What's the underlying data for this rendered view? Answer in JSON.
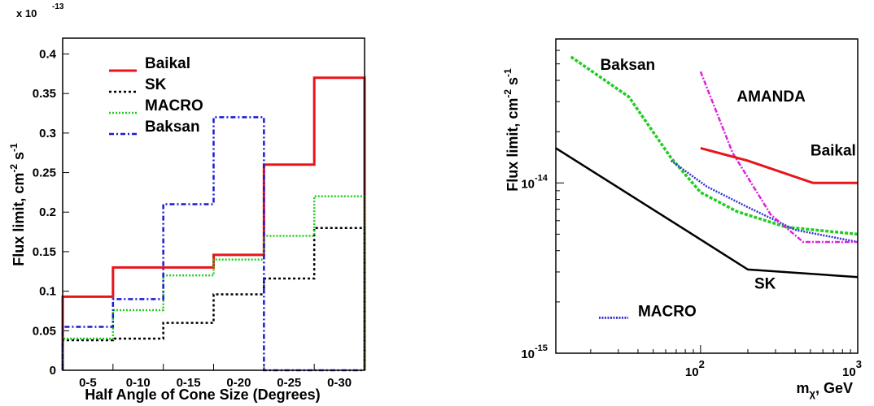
{
  "chart_data": [
    {
      "type": "step",
      "multiplier_label": {
        "base": "x 10",
        "exp": "-13"
      },
      "xlabel": "Half Angle of Cone Size (Degrees)",
      "ylabel": {
        "main": "Flux limit, cm",
        "exp1": "-2",
        "mid": " s",
        "exp2": "-1"
      },
      "categories": [
        "0-5",
        "0-10",
        "0-15",
        "0-20",
        "0-25",
        "0-30"
      ],
      "ylim": [
        0,
        0.42
      ],
      "yticks": [
        "0",
        "0.05",
        "0.1",
        "0.15",
        "0.2",
        "0.25",
        "0.3",
        "0.35",
        "0.4"
      ],
      "legend_position": "top-left",
      "series": [
        {
          "name": "Baikal",
          "color": "#e8141b",
          "dash": "",
          "width": 3,
          "values": [
            0.093,
            0.13,
            0.13,
            0.146,
            0.26,
            0.37
          ]
        },
        {
          "name": "SK",
          "color": "#000000",
          "dash": "3,3",
          "width": 2.5,
          "values": [
            0.038,
            0.04,
            0.06,
            0.096,
            0.116,
            0.18
          ]
        },
        {
          "name": "MACRO",
          "color": "#22cc22",
          "dash": "2,2",
          "width": 2.5,
          "values": [
            0.04,
            0.076,
            0.12,
            0.14,
            0.17,
            0.22
          ]
        },
        {
          "name": "Baksan",
          "color": "#1a1ad6",
          "dash": "6,3,2,3",
          "width": 2.5,
          "values": [
            0.055,
            0.09,
            0.21,
            0.32,
            0.0,
            0.0
          ]
        }
      ]
    },
    {
      "type": "line",
      "xscale": "log",
      "yscale": "log",
      "xlabel": {
        "main": "m",
        "sub": "χ",
        "rest": ", GeV"
      },
      "ylabel": {
        "main": "Flux limit, cm",
        "exp1": "-2",
        "mid": " s",
        "exp2": "-1"
      },
      "xlim": [
        12,
        1000
      ],
      "ylim": [
        1e-15,
        7e-14
      ],
      "xticks": [
        {
          "value": 100,
          "base": "10",
          "exp": "2"
        },
        {
          "value": 1000,
          "base": "10",
          "exp": "3"
        }
      ],
      "yticks": [
        {
          "value": 1e-15,
          "base": "10",
          "exp": "-15"
        },
        {
          "value": 1e-14,
          "base": "10",
          "exp": "-14"
        }
      ],
      "series": [
        {
          "name": "SK",
          "color": "#000000",
          "dash": "",
          "width": 2.5,
          "points": [
            [
              12,
              1.6e-14
            ],
            [
              80,
              5.3e-15
            ],
            [
              200,
              3.1e-15
            ],
            [
              1000,
              2.8e-15
            ]
          ]
        },
        {
          "name": "Baksan",
          "color": "#22cc22",
          "dash": "4,2",
          "width": 3.5,
          "points": [
            [
              15,
              5.5e-14
            ],
            [
              35,
              3.2e-14
            ],
            [
              65,
              1.4e-14
            ],
            [
              100,
              8.8e-15
            ],
            [
              170,
              6.8e-15
            ],
            [
              350,
              5.5e-15
            ],
            [
              1000,
              5e-15
            ]
          ]
        },
        {
          "name": "MACRO",
          "color": "#3333cc",
          "dash": "2,1.5",
          "width": 2.5,
          "points": [
            [
              65,
              1.35e-14
            ],
            [
              110,
              9.5e-15
            ],
            [
              200,
              7.2e-15
            ],
            [
              400,
              5.3e-15
            ],
            [
              1000,
              4.5e-15
            ]
          ]
        },
        {
          "name": "AMANDA",
          "color": "#dd22dd",
          "dash": "6,2,2,2",
          "width": 2.5,
          "points": [
            [
              100,
              4.5e-14
            ],
            [
              160,
              1.5e-14
            ],
            [
              280,
              6.5e-15
            ],
            [
              450,
              4.5e-15
            ],
            [
              1000,
              4.5e-15
            ]
          ]
        },
        {
          "name": "Baikal",
          "color": "#e8141b",
          "dash": "",
          "width": 3,
          "points": [
            [
              100,
              1.6e-14
            ],
            [
              200,
              1.35e-14
            ],
            [
              520,
              1e-14
            ],
            [
              1000,
              1e-14
            ]
          ]
        }
      ],
      "labels": [
        {
          "text": "Baksan",
          "x": 23,
          "y": 4.6e-14
        },
        {
          "text": "AMANDA",
          "x": 170,
          "y": 3e-14
        },
        {
          "text": "Baikal",
          "x": 500,
          "y": 1.45e-14
        },
        {
          "text": "SK",
          "x": 220,
          "y": 2.4e-15
        },
        {
          "text": "MACRO",
          "x": 40,
          "y": 1.65e-15
        }
      ]
    }
  ]
}
